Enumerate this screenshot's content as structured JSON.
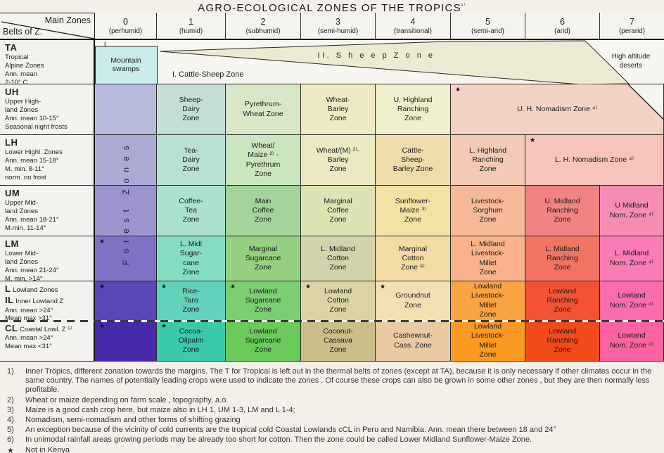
{
  "chart_data": {
    "type": "table",
    "title": "AGRO-ECOLOGICAL ZONES OF THE TROPICS",
    "title_sup": "¹⁾",
    "corner": {
      "top": "Main Zones",
      "bottom": "Belts of Z."
    },
    "columns": [
      {
        "num": "0",
        "name": "(perhumid)"
      },
      {
        "num": "1",
        "name": "(humid)"
      },
      {
        "num": "2",
        "name": "(subhumid)"
      },
      {
        "num": "3",
        "name": "(semi-humid)"
      },
      {
        "num": "4",
        "name": "(transitional)"
      },
      {
        "num": "5",
        "name": "(semi-arid)"
      },
      {
        "num": "6",
        "name": "(arid)"
      },
      {
        "num": "7",
        "name": "(perarid)"
      }
    ],
    "col0_vertical_label": "Forest  Zones",
    "ta": {
      "bracket": "(",
      "mountain_swamps_1": "Mountain",
      "mountain_swamps_2": "swamps",
      "cattle_sheep": "I. Cattle-Sheep Zone",
      "sheep": "II. S h e e p   Z o n e",
      "deserts_1": "High altitude",
      "deserts_2": "deserts"
    },
    "rows": [
      {
        "id": "TA",
        "header": [
          {
            "b": "TA"
          },
          {
            "t": "Tropical"
          },
          {
            "t": "Alpine Zones"
          },
          {
            "t": "Ann. mean"
          },
          {
            "t": "2-10° C"
          }
        ],
        "cells": []
      },
      {
        "id": "UH",
        "header": [
          {
            "b": "UH"
          },
          {
            "t": "Upper High-"
          },
          {
            "t": "land Zones"
          },
          {
            "t": "Ann. mean 10-15°"
          },
          {
            "t": "Seasonal night frosts"
          }
        ],
        "cells": [
          {
            "bg": "#b7b9dd"
          },
          {
            "t": "Sheep-\nDairy\nZone",
            "bg": "#c4ded7"
          },
          {
            "t": "Pyrethrum-\nWheat Zone",
            "bg": "#d9e7c9"
          },
          {
            "t": "Wheat-\nBarley\nZone",
            "bg": "#efe9c4"
          },
          {
            "t": "U. Highland\nRanching\nZone",
            "bg": "#eff0cb"
          },
          {
            "t": "U. H. Nomadism Zone ⁴⁾",
            "bg": "#f3d3c6",
            "span": 3,
            "star": true,
            "cut": true
          }
        ]
      },
      {
        "id": "LH",
        "header": [
          {
            "b": "LH"
          },
          {
            "t": "Lower Highl. Zones"
          },
          {
            "t": "Ann. mean 15-18°"
          },
          {
            "t": "M. min. 8-11°"
          },
          {
            "t": "norm. no frost"
          }
        ],
        "cells": [
          {
            "bg": "#abaad5"
          },
          {
            "t": "Tea-\nDairy\nZone",
            "bg": "#b9e1d3"
          },
          {
            "t": "Wheat/\nMaize ²⁾ -\nPyrethrum\nZone",
            "bg": "#cbe5bf"
          },
          {
            "t": "Wheat/(M) ²⁾-\nBarley\nZone",
            "bg": "#ebe9c2"
          },
          {
            "t": "Cattle-\nSheep-\nBarley Zone",
            "bg": "#eedcab"
          },
          {
            "t": "L. Highland\nRanching\nZone",
            "bg": "#f4cab6"
          },
          {
            "t": "L. H. Nomadism Zone ⁴⁾",
            "bg": "#f6c3bd",
            "span": 2,
            "star": true
          }
        ]
      },
      {
        "id": "UM",
        "header": [
          {
            "b": "UM"
          },
          {
            "t": "Upper Mid-"
          },
          {
            "t": "land Zones"
          },
          {
            "t": "Ann. mean 18-21°"
          },
          {
            "t": "M.min. 11-14°"
          }
        ],
        "cells": [
          {
            "bg": "#9b94cf"
          },
          {
            "t": "Coffee-\nTea\nZone",
            "bg": "#abe2cf"
          },
          {
            "t": "Main\nCoffee\nZone",
            "bg": "#a3d49a"
          },
          {
            "t": "Marginal\nCoffee\nZone",
            "bg": "#dce3b3"
          },
          {
            "t": "Sunflower-\nMaize ³⁾\nZone",
            "bg": "#f2e3a4"
          },
          {
            "t": "Livestock-\nSorghum\nZone",
            "bg": "#f6ba9a"
          },
          {
            "t": "U. Midland\nRanching\nZone",
            "bg": "#f28383"
          },
          {
            "t": "U Midland\nNom. Zone ⁴⁾",
            "bg": "#f48cb4"
          }
        ]
      },
      {
        "id": "LM",
        "header": [
          {
            "b": "LM"
          },
          {
            "t": "Lower Mid-"
          },
          {
            "t": "land Zones"
          },
          {
            "t": "Ann. mean 21-24°"
          },
          {
            "t": "M. min. >14°"
          }
        ],
        "cells": [
          {
            "bg": "#7f72c4",
            "star": true
          },
          {
            "t": "L. Midl\nSugar-\ncane\nZone",
            "bg": "#84dcc3"
          },
          {
            "t": "Marginal\nSugarcane\nZone",
            "bg": "#94cf82"
          },
          {
            "t": "L. Midland\nCotton\nZone",
            "bg": "#d3d3ab"
          },
          {
            "t": "Marginal\nCotton\nZone ⁶⁾",
            "bg": "#f2dca3"
          },
          {
            "t": "L. Midland\nLivestock-\nMillet\nZone",
            "bg": "#f9b28b"
          },
          {
            "t": "L. Midland\nRanching\nZone",
            "bg": "#f27364"
          },
          {
            "t": "L. Midland\nNom. Zone ⁴⁾",
            "bg": "#f97cb4"
          }
        ]
      },
      {
        "id": "IL",
        "header": [
          {
            "b": "L",
            "t": " Lowland Zones"
          },
          {
            "b": "IL",
            "t": " Inner Lowland Z"
          },
          {
            "t": "Ann. mean >24°"
          },
          {
            "t": "Mean max >31°"
          }
        ],
        "cells": [
          {
            "bg": "#5847b5",
            "star": true
          },
          {
            "t": "Rice-\nTaro\nZone",
            "bg": "#63d2ba",
            "star": true
          },
          {
            "t": "Lowland\nSugarcane\nZone",
            "bg": "#7bce72",
            "star": true
          },
          {
            "t": "Lowland\nCotton\nZone",
            "bg": "#dbd3a3",
            "star": true
          },
          {
            "t": "Groundnut\nZone",
            "bg": "#f2dfb3",
            "star": true
          },
          {
            "t": "Lowland\nLivestock-\nMillet\nZone",
            "bg": "#faa342"
          },
          {
            "t": "Lowland\nRanching\nZone",
            "bg": "#f25433"
          },
          {
            "t": "Lowland\nNom. Zone ⁴⁾",
            "bg": "#fa6cab"
          }
        ]
      },
      {
        "id": "CL",
        "header": [
          {
            "b": "CL",
            "t": " Coastal Lowl. Z ⁵⁾"
          },
          {
            "t": "Ann. mean >24°"
          },
          {
            "t": "Mean max <31°"
          }
        ],
        "cells": [
          {
            "bg": "#4629a8",
            "star": true
          },
          {
            "t": "Cocoa-\nOilpalm\nZone",
            "bg": "#3bcaa9",
            "star": true
          },
          {
            "t": "Lowland\nSugarcane\nZone",
            "bg": "#6aca5a"
          },
          {
            "t": "Coconut-\nCassava\nZone",
            "bg": "#cabe8a"
          },
          {
            "t": "Cashewnut-\nCass. Zone",
            "bg": "#eacaa2"
          },
          {
            "t": "Lowland\nLivestock-\nMillet\nZone",
            "bg": "#fa9a22"
          },
          {
            "t": "Lowland\nRanching\nZone",
            "bg": "#f24a1a"
          },
          {
            "t": "Lowland\nNom. Zone ⁴⁾",
            "bg": "#fa62a2"
          }
        ]
      }
    ],
    "footnotes": [
      {
        "marker": "1)",
        "text": "Inner Tropics, different zonation towards the margins. The T for Tropical is left out in the thermal belts of zones (except at TA), because it is only necessary if other climates occur in the same country. The names of potentially leading crops were used to indicate the zones . Of course these crops can also be grown in some other zones , but they are then normally less profitable."
      },
      {
        "marker": "2)",
        "text": "Wheat or maize depending on farm scale , topography, a.o."
      },
      {
        "marker": "3)",
        "text": "Maize is a good cash crop here, but maize also in LH 1, UM 1-3, LM and L 1-4;"
      },
      {
        "marker": "4)",
        "text": "Nomadism, semi-nomadism and other forms of shifting grazing"
      },
      {
        "marker": "5)",
        "text": "An exception because of the vicinity of cold currents are the tropical cold Coastal Lowlands cCL in Peru and Namibia. Ann. mean there between 18 and 24°"
      },
      {
        "marker": "6)",
        "text": "In unimodal rainfall areas growing periods may be already too short for cotton. Then the zone could be called Lower Midland Sunflower-Maize  Zone."
      },
      {
        "marker": "★",
        "text": "Not in Kenya"
      }
    ]
  }
}
